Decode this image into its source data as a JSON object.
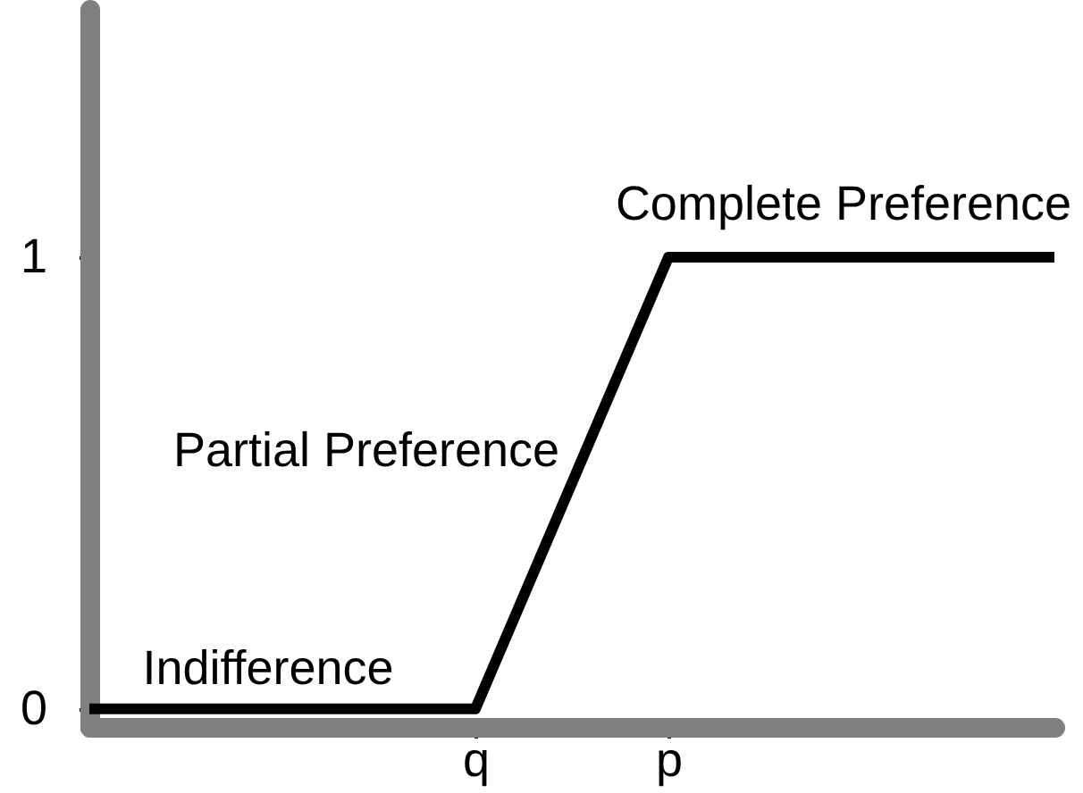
{
  "chart_data": {
    "type": "line",
    "categories": [
      null,
      null,
      "q",
      "p",
      null,
      null
    ],
    "values": [
      0,
      0,
      0,
      1,
      1,
      1
    ],
    "color": "#000000",
    "ylim": [
      -0.04,
      1.55
    ],
    "yticks": [
      0,
      1
    ],
    "annotations": [
      "Indifference",
      "Partial Preference",
      "Complete Preference"
    ],
    "grid": false,
    "line_style": "solid"
  }
}
